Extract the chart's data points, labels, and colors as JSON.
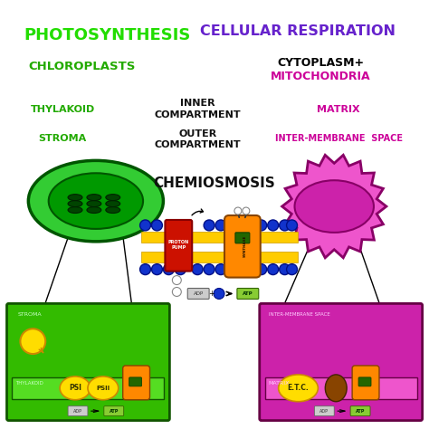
{
  "bg_color": "#ffffff",
  "title_left": "PHOTOSYNTHESIS",
  "title_right": "CELLULAR RESPIRATION",
  "title_left_color": "#22dd00",
  "title_right_color": "#6622cc",
  "chloroplasts_label": "CHLOROPLASTS",
  "chloroplasts_color": "#22aa00",
  "cytoplasm_label": "CYTOPLASM+",
  "mitochondria_label": "MITOCHONDRIA",
  "cytoplasm_color": "#000000",
  "mitochondria_color": "#cc0099",
  "thylakoid_label": "THYLAKOID",
  "stroma_label": "STROMA",
  "left_labels_color": "#22aa00",
  "inner_compartment_1": "INNER",
  "inner_compartment_2": "COMPARTMENT",
  "outer_compartment_1": "OUTER",
  "outer_compartment_2": "COMPARTMENT",
  "middle_labels_color": "#111111",
  "matrix_label": "MATRIX",
  "intermembrane_label": "INTER-MEMBRANE  SPACE",
  "right_labels_color": "#cc0099",
  "chemiosmosis_label": "CHEMIOSMOSIS",
  "chemiosmosis_color": "#111111",
  "chloroplast_outer_color": "#33cc33",
  "chloroplast_inner_color": "#009900",
  "chloroplast_edge_color": "#005500",
  "mitochondria_outer_color": "#ee55cc",
  "mitochondria_inner_color": "#cc22aa",
  "mitochondria_edge_color": "#880066",
  "left_box_bg": "#33bb00",
  "left_box_stripe": "#55dd22",
  "left_box_edge": "#115500",
  "right_box_bg": "#cc22aa",
  "right_box_stripe": "#ee55cc",
  "right_box_edge": "#660044",
  "proton_pump_color": "#cc1100",
  "proton_pump_edge": "#880000",
  "membrane_color": "#ffcc00",
  "membrane_edge": "#cc9900",
  "atp_synthase_color": "#ff8800",
  "atp_synthase_edge": "#884400",
  "proton_color": "#1133cc",
  "proton_edge": "#001188",
  "hollow_proton_color": "#ffffff",
  "hollow_proton_edge": "#888888",
  "adp_color": "#cccccc",
  "adp_edge": "#666666",
  "atp_color": "#88cc33",
  "atp_edge": "#336600",
  "sun_color": "#ffdd00",
  "sun_edge": "#cc8800",
  "psi_color": "#ffdd00",
  "psi_edge": "#cc8800",
  "etc_color": "#ffdd00",
  "etc_edge": "#cc8800",
  "dark_protein_color": "#884400",
  "dark_protein_edge": "#442200"
}
